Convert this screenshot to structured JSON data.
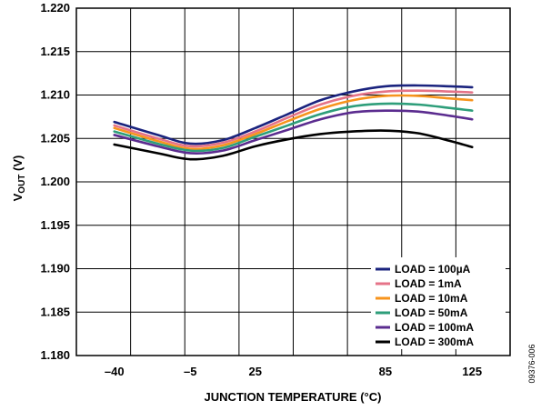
{
  "chart_data": {
    "type": "line",
    "title": "",
    "xlabel": "JUNCTION TEMPERATURE (°C)",
    "ylabel_main": "V",
    "ylabel_sub": "OUT",
    "ylabel_unit": " (V)",
    "xlim": [
      -57.5,
      142.5
    ],
    "ylim": [
      1.18,
      1.22
    ],
    "x_ticks": [
      -40,
      -5,
      25,
      85,
      125
    ],
    "x_tick_labels": [
      "–40",
      "–5",
      "25",
      "85",
      "125"
    ],
    "y_ticks": [
      1.18,
      1.185,
      1.19,
      1.195,
      1.2,
      1.205,
      1.21,
      1.215,
      1.22
    ],
    "y_tick_labels": [
      "1.180",
      "1.185",
      "1.190",
      "1.195",
      "1.200",
      "1.205",
      "1.210",
      "1.215",
      "1.220"
    ],
    "grid": true,
    "legend_position": "bottom-right",
    "x": [
      -40,
      -20,
      -5,
      10,
      25,
      40,
      55,
      70,
      85,
      100,
      115,
      125
    ],
    "series": [
      {
        "name": "LOAD = 100µA",
        "color": "#1a237e",
        "values": [
          1.2069,
          1.2054,
          1.2044,
          1.2048,
          1.2062,
          1.2078,
          1.2094,
          1.2104,
          1.211,
          1.2111,
          1.211,
          1.2109
        ]
      },
      {
        "name": "LOAD = 1mA",
        "color": "#e57388",
        "values": [
          1.2065,
          1.205,
          1.2041,
          1.2045,
          1.2058,
          1.2074,
          1.2089,
          1.2099,
          1.2104,
          1.2105,
          1.2104,
          1.2103
        ]
      },
      {
        "name": "LOAD = 10mA",
        "color": "#f7941d",
        "values": [
          1.2062,
          1.2047,
          1.2038,
          1.2042,
          1.2055,
          1.207,
          1.2084,
          1.2094,
          1.2099,
          1.2099,
          1.2096,
          1.2094
        ]
      },
      {
        "name": "LOAD = 50mA",
        "color": "#2e9e7a",
        "values": [
          1.2058,
          1.2044,
          1.2036,
          1.2039,
          1.2052,
          1.2065,
          1.2078,
          1.2087,
          1.209,
          1.2089,
          1.2085,
          1.2082
        ]
      },
      {
        "name": "LOAD = 100mA",
        "color": "#5b2c8f",
        "values": [
          1.2054,
          1.2041,
          1.2033,
          1.2036,
          1.2048,
          1.206,
          1.2072,
          1.208,
          1.2082,
          1.2081,
          1.2076,
          1.2072
        ]
      },
      {
        "name": "LOAD = 300mA",
        "color": "#000000",
        "values": [
          1.2043,
          1.2033,
          1.2026,
          1.203,
          1.2041,
          1.2049,
          1.2055,
          1.2058,
          1.2059,
          1.2056,
          1.2047,
          1.204
        ]
      }
    ]
  },
  "figure_id": "09376-006"
}
